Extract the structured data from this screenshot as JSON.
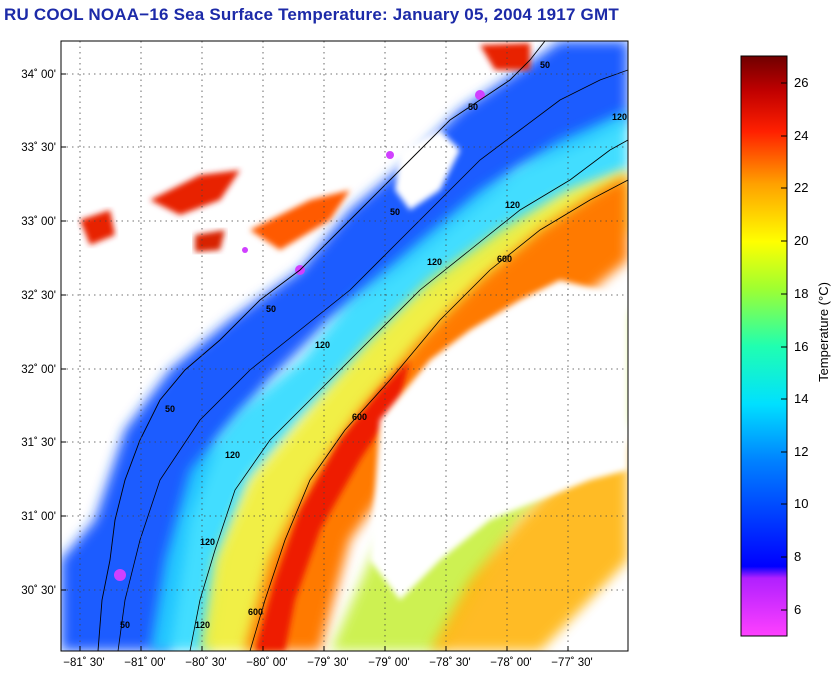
{
  "title": "RU COOL  NOAA−16  Sea Surface Temperature:  January 05, 2004 1917 GMT",
  "map": {
    "lat_ticks": [
      "34˚ 00'",
      "33˚ 30'",
      "33˚ 00'",
      "32˚ 30'",
      "32˚ 00'",
      "31˚ 30'",
      "31˚ 00'",
      "30˚ 30'"
    ],
    "lon_ticks": [
      "−81˚ 30'",
      "−81˚ 00'",
      "−80˚ 30'",
      "−80˚ 00'",
      "−79˚ 30'",
      "−79˚ 00'",
      "−78˚ 30'",
      "−78˚ 00'",
      "−77˚ 30'"
    ],
    "contour_labels": [
      "50",
      "50",
      "50",
      "50",
      "50",
      "120",
      "120",
      "120",
      "120",
      "120",
      "120",
      "600",
      "600",
      "600",
      "120",
      "50"
    ],
    "grid": true
  },
  "colorbar": {
    "label": "Temperature (°C)",
    "ticks": [
      "26",
      "24",
      "22",
      "20",
      "18",
      "16",
      "14",
      "12",
      "10",
      "8",
      "6"
    ],
    "min": 5,
    "max": 27,
    "colors": [
      "#ff40ff",
      "#a000ff",
      "#0000ff",
      "#0060ff",
      "#00c8ff",
      "#00ffd0",
      "#80ff40",
      "#ffff00",
      "#ffa000",
      "#ff2000",
      "#c00000",
      "#800000"
    ]
  }
}
